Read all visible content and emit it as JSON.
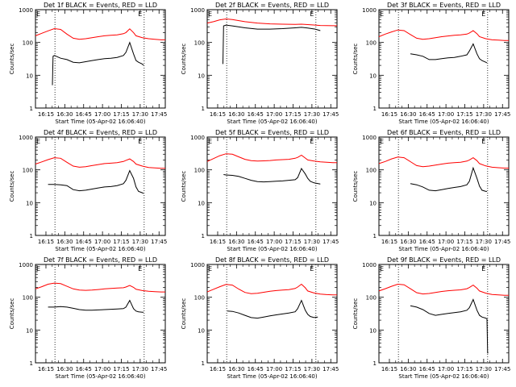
{
  "colors": {
    "events": "#000000",
    "lld": "#ff0000",
    "axis": "#000000",
    "marker": "#000000"
  },
  "common": {
    "ylabel": "Counts/sec",
    "xlabel": "Start Time (05-Apr-02 16:06:40)",
    "xticks": [
      "16:15",
      "16:30",
      "16:45",
      "17:00",
      "17:15",
      "17:30",
      "17:45"
    ],
    "yticks": [
      "1",
      "10",
      "100",
      "1000"
    ],
    "corner_marks": [
      "E",
      "E"
    ]
  },
  "chart_data": [
    {
      "type": "line",
      "title": "Det 1f BLACK = Events, RED = LLD",
      "ylabel": "Counts/sec",
      "xlabel": "Start Time (05-Apr-02 16:06:40)",
      "x_unit": "minutes after 16:06:40",
      "xlim": [
        0,
        103.3
      ],
      "ylim": [
        1,
        1000
      ],
      "yscale": "log",
      "vlines": [
        15.5,
        86.5
      ],
      "series": [
        {
          "color": "red",
          "x": [
            0,
            5,
            10,
            15,
            20,
            25,
            30,
            35,
            40,
            45,
            50,
            55,
            60,
            65,
            70,
            72,
            75,
            78,
            80,
            85,
            90,
            95,
            100,
            103.3
          ],
          "y": [
            160,
            190,
            225,
            265,
            250,
            180,
            135,
            125,
            130,
            140,
            150,
            160,
            165,
            170,
            185,
            200,
            260,
            200,
            160,
            140,
            130,
            125,
            120,
            120
          ]
        },
        {
          "color": "black",
          "x": [
            13.5,
            14,
            15,
            20,
            25,
            30,
            35,
            40,
            45,
            50,
            55,
            60,
            65,
            70,
            72,
            75,
            78,
            80,
            82,
            85,
            86
          ],
          "y": [
            5,
            38,
            40,
            33,
            30,
            25,
            24,
            26,
            28,
            30,
            32,
            33,
            35,
            40,
            50,
            100,
            45,
            28,
            25,
            22,
            20
          ]
        }
      ]
    },
    {
      "type": "line",
      "title": "Det 2f BLACK = Events, RED = LLD",
      "ylabel": "Counts/sec",
      "xlabel": "Start Time (05-Apr-02 16:06:40)",
      "x_unit": "minutes after 16:06:40",
      "xlim": [
        0,
        103.3
      ],
      "ylim": [
        1,
        1000
      ],
      "yscale": "log",
      "vlines": [
        15.5,
        86.5
      ],
      "series": [
        {
          "color": "red",
          "x": [
            0,
            5,
            10,
            15,
            20,
            30,
            40,
            50,
            60,
            70,
            75,
            80,
            86,
            90,
            100,
            103.3
          ],
          "y": [
            390,
            430,
            490,
            520,
            500,
            430,
            390,
            370,
            360,
            355,
            360,
            350,
            340,
            330,
            325,
            325
          ]
        },
        {
          "color": "black",
          "x": [
            12.5,
            13,
            15,
            20,
            30,
            40,
            50,
            60,
            70,
            75,
            80,
            86,
            90
          ],
          "y": [
            22,
            320,
            340,
            320,
            280,
            255,
            255,
            265,
            280,
            290,
            275,
            255,
            230
          ]
        }
      ]
    },
    {
      "type": "line",
      "title": "Det 3f BLACK = Events, RED = LLD",
      "ylabel": "Counts/sec",
      "xlabel": "Start Time (05-Apr-02 16:06:40)",
      "x_unit": "minutes after 16:06:40",
      "xlim": [
        0,
        103.3
      ],
      "ylim": [
        1,
        1000
      ],
      "yscale": "log",
      "vlines": [
        15.5,
        86.5
      ],
      "series": [
        {
          "color": "red",
          "x": [
            0,
            5,
            10,
            15,
            20,
            25,
            30,
            35,
            40,
            45,
            50,
            55,
            60,
            65,
            70,
            72,
            75,
            78,
            80,
            85,
            90,
            95,
            100,
            103.3
          ],
          "y": [
            150,
            180,
            210,
            240,
            230,
            175,
            135,
            125,
            130,
            140,
            150,
            158,
            165,
            170,
            180,
            195,
            230,
            185,
            150,
            130,
            120,
            118,
            115,
            115
          ]
        },
        {
          "color": "black",
          "x": [
            25,
            30,
            35,
            40,
            45,
            50,
            55,
            60,
            65,
            70,
            72,
            75,
            78,
            80,
            82,
            85,
            86
          ],
          "y": [
            45,
            42,
            38,
            30,
            30,
            32,
            34,
            35,
            38,
            42,
            55,
            90,
            45,
            32,
            28,
            25,
            24
          ]
        }
      ]
    },
    {
      "type": "line",
      "title": "Det 4f BLACK = Events, RED = LLD",
      "ylabel": "Counts/sec",
      "xlabel": "Start Time (05-Apr-02 16:06:40)",
      "x_unit": "minutes after 16:06:40",
      "xlim": [
        0,
        103.3
      ],
      "ylim": [
        1,
        1000
      ],
      "yscale": "log",
      "vlines": [
        15.5,
        86.5
      ],
      "series": [
        {
          "color": "red",
          "x": [
            0,
            5,
            10,
            15,
            20,
            25,
            30,
            35,
            40,
            45,
            50,
            55,
            60,
            65,
            70,
            72,
            75,
            78,
            80,
            85,
            90,
            95,
            100,
            103.3
          ],
          "y": [
            150,
            175,
            205,
            235,
            225,
            170,
            130,
            120,
            125,
            135,
            145,
            155,
            160,
            165,
            180,
            195,
            215,
            180,
            150,
            130,
            118,
            115,
            112,
            112
          ]
        },
        {
          "color": "black",
          "x": [
            10,
            15,
            20,
            25,
            30,
            35,
            40,
            45,
            50,
            55,
            60,
            65,
            70,
            72,
            75,
            78,
            80,
            82,
            85,
            86
          ],
          "y": [
            36,
            36,
            35,
            33,
            25,
            23,
            24,
            26,
            28,
            30,
            31,
            33,
            38,
            48,
            95,
            55,
            30,
            22,
            20,
            19
          ]
        }
      ]
    },
    {
      "type": "line",
      "title": "Det 5f BLACK = Events, RED = LLD",
      "ylabel": "Counts/sec",
      "xlabel": "Start Time (05-Apr-02 16:06:40)",
      "x_unit": "minutes after 16:06:40",
      "xlim": [
        0,
        103.3
      ],
      "ylim": [
        1,
        1000
      ],
      "yscale": "log",
      "vlines": [
        15.5,
        86.5
      ],
      "series": [
        {
          "color": "red",
          "x": [
            0,
            5,
            10,
            15,
            20,
            25,
            30,
            35,
            40,
            45,
            50,
            55,
            60,
            65,
            70,
            72,
            75,
            78,
            80,
            85,
            90,
            95,
            100,
            103.3
          ],
          "y": [
            180,
            220,
            270,
            310,
            300,
            250,
            210,
            190,
            185,
            188,
            192,
            200,
            205,
            210,
            225,
            240,
            280,
            230,
            200,
            185,
            175,
            170,
            165,
            165
          ]
        },
        {
          "color": "black",
          "x": [
            13,
            15,
            20,
            25,
            30,
            35,
            40,
            45,
            50,
            55,
            60,
            65,
            70,
            72,
            75,
            78,
            80,
            82,
            85,
            90
          ],
          "y": [
            72,
            70,
            68,
            63,
            55,
            48,
            44,
            43,
            44,
            45,
            46,
            48,
            50,
            58,
            110,
            75,
            55,
            45,
            40,
            37
          ]
        }
      ]
    },
    {
      "type": "line",
      "title": "Det 6f BLACK = Events, RED = LLD",
      "ylabel": "Counts/sec",
      "xlabel": "Start Time (05-Apr-02 16:06:40)",
      "x_unit": "minutes after 16:06:40",
      "xlim": [
        0,
        103.3
      ],
      "ylim": [
        1,
        1000
      ],
      "yscale": "log",
      "vlines": [
        15.5,
        86.5
      ],
      "series": [
        {
          "color": "red",
          "x": [
            0,
            5,
            10,
            15,
            20,
            25,
            30,
            35,
            40,
            45,
            50,
            55,
            60,
            65,
            70,
            72,
            75,
            78,
            80,
            85,
            90,
            95,
            100,
            103.3
          ],
          "y": [
            155,
            180,
            215,
            245,
            235,
            178,
            135,
            125,
            130,
            140,
            150,
            160,
            165,
            170,
            185,
            200,
            235,
            190,
            155,
            132,
            120,
            116,
            113,
            113
          ]
        },
        {
          "color": "black",
          "x": [
            25,
            30,
            35,
            40,
            45,
            50,
            55,
            60,
            65,
            70,
            72,
            75,
            78,
            80,
            82,
            85,
            86
          ],
          "y": [
            38,
            35,
            30,
            24,
            23,
            25,
            27,
            29,
            31,
            35,
            45,
            115,
            55,
            32,
            24,
            22,
            22
          ]
        }
      ]
    },
    {
      "type": "line",
      "title": "Det 7f BLACK = Events, RED = LLD",
      "ylabel": "Counts/sec",
      "xlabel": "Start Time (05-Apr-02 16:06:40)",
      "x_unit": "minutes after 16:06:40",
      "xlim": [
        0,
        103.3
      ],
      "ylim": [
        1,
        1000
      ],
      "yscale": "log",
      "vlines": [
        15.5,
        86.5
      ],
      "series": [
        {
          "color": "red",
          "x": [
            0,
            5,
            10,
            15,
            20,
            25,
            30,
            35,
            40,
            45,
            50,
            55,
            60,
            65,
            70,
            72,
            75,
            78,
            80,
            85,
            90,
            95,
            100,
            103.3
          ],
          "y": [
            180,
            210,
            250,
            270,
            260,
            215,
            180,
            165,
            162,
            165,
            172,
            180,
            185,
            190,
            195,
            205,
            230,
            200,
            175,
            160,
            152,
            148,
            145,
            145
          ]
        },
        {
          "color": "black",
          "x": [
            10,
            15,
            20,
            25,
            30,
            35,
            40,
            45,
            50,
            55,
            60,
            65,
            70,
            72,
            75,
            78,
            80,
            82,
            85,
            86
          ],
          "y": [
            50,
            50,
            52,
            50,
            46,
            42,
            40,
            40,
            41,
            42,
            43,
            44,
            45,
            50,
            80,
            45,
            38,
            36,
            35,
            35
          ]
        }
      ]
    },
    {
      "type": "line",
      "title": "Det 8f BLACK = Events, RED = LLD",
      "ylabel": "Counts/sec",
      "xlabel": "Start Time (05-Apr-02 16:06:40)",
      "x_unit": "minutes after 16:06:40",
      "xlim": [
        0,
        103.3
      ],
      "ylim": [
        1,
        1000
      ],
      "yscale": "log",
      "vlines": [
        15.5,
        86.5
      ],
      "series": [
        {
          "color": "red",
          "x": [
            0,
            5,
            10,
            15,
            20,
            25,
            30,
            35,
            40,
            45,
            50,
            55,
            60,
            65,
            70,
            72,
            75,
            78,
            80,
            85,
            90,
            95,
            100,
            103.3
          ],
          "y": [
            145,
            175,
            210,
            245,
            235,
            178,
            140,
            128,
            132,
            142,
            152,
            160,
            165,
            170,
            185,
            205,
            250,
            195,
            155,
            135,
            125,
            120,
            118,
            118
          ]
        },
        {
          "color": "black",
          "x": [
            16,
            20,
            25,
            30,
            35,
            40,
            45,
            50,
            55,
            60,
            65,
            70,
            72,
            75,
            78,
            80,
            82,
            85,
            88
          ],
          "y": [
            38,
            37,
            33,
            28,
            24,
            23,
            25,
            27,
            29,
            31,
            33,
            36,
            45,
            80,
            40,
            30,
            26,
            24,
            25
          ]
        }
      ]
    },
    {
      "type": "line",
      "title": "Det 9f BLACK = Events, RED = LLD",
      "ylabel": "Counts/sec",
      "xlabel": "Start Time (05-Apr-02 16:06:40)",
      "x_unit": "minutes after 16:06:40",
      "xlim": [
        0,
        103.3
      ],
      "ylim": [
        1,
        1000
      ],
      "yscale": "log",
      "vlines": [
        15.5,
        86.5
      ],
      "series": [
        {
          "color": "red",
          "x": [
            0,
            5,
            10,
            15,
            20,
            25,
            30,
            35,
            40,
            45,
            50,
            55,
            60,
            65,
            70,
            72,
            75,
            78,
            80,
            85,
            90,
            95,
            100,
            103.3
          ],
          "y": [
            155,
            182,
            215,
            250,
            240,
            182,
            138,
            126,
            130,
            140,
            150,
            158,
            163,
            168,
            182,
            198,
            235,
            188,
            155,
            133,
            122,
            118,
            115,
            115
          ]
        },
        {
          "color": "black",
          "x": [
            25,
            30,
            35,
            40,
            45,
            50,
            55,
            60,
            65,
            70,
            72,
            75,
            78,
            80,
            82,
            85,
            86,
            86.5,
            87
          ],
          "y": [
            55,
            50,
            42,
            32,
            28,
            30,
            32,
            34,
            36,
            40,
            48,
            85,
            40,
            28,
            25,
            23,
            22,
            2,
            2
          ]
        }
      ]
    }
  ]
}
